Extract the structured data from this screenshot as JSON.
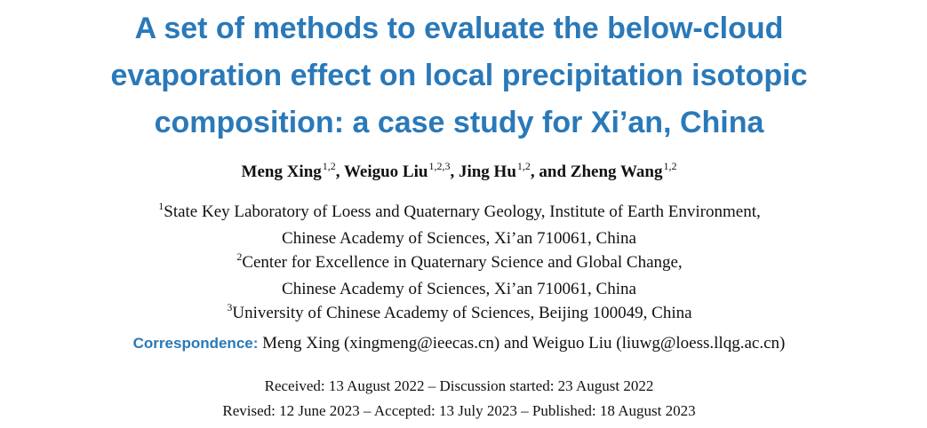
{
  "title": {
    "line1": "A set of methods to evaluate the below-cloud",
    "line2": "evaporation effect on local precipitation isotopic",
    "line3": "composition: a case study for Xi’an, China"
  },
  "authors": [
    {
      "name": "Meng Xing",
      "affil": "1,2",
      "sep": ", "
    },
    {
      "name": "Weiguo Liu",
      "affil": "1,2,3",
      "sep": ", "
    },
    {
      "name": "Jing Hu",
      "affil": "1,2",
      "sep": ", and "
    },
    {
      "name": "Zheng Wang",
      "affil": "1,2",
      "sep": ""
    }
  ],
  "affiliations": [
    {
      "mark": "1",
      "line1": "State Key Laboratory of Loess and Quaternary Geology, Institute of Earth Environment,",
      "line2": "Chinese Academy of Sciences, Xi’an 710061, China"
    },
    {
      "mark": "2",
      "line1": "Center for Excellence in Quaternary Science and Global Change,",
      "line2": "Chinese Academy of Sciences, Xi’an 710061, China"
    },
    {
      "mark": "3",
      "line1": "University of Chinese Academy of Sciences, Beijing 100049, China",
      "line2": ""
    }
  ],
  "correspondence": {
    "label": "Correspondence:",
    "text": "Meng Xing (xingmeng@ieecas.cn) and Weiguo Liu (liuwg@loess.llqg.ac.cn)"
  },
  "dates": {
    "line1": "Received: 13 August 2022 – Discussion started: 23 August 2022",
    "line2": "Revised: 12 June 2023 – Accepted: 13 July 2023 – Published: 18 August 2023"
  },
  "colors": {
    "accent": "#2a79b9",
    "text": "#111111"
  }
}
